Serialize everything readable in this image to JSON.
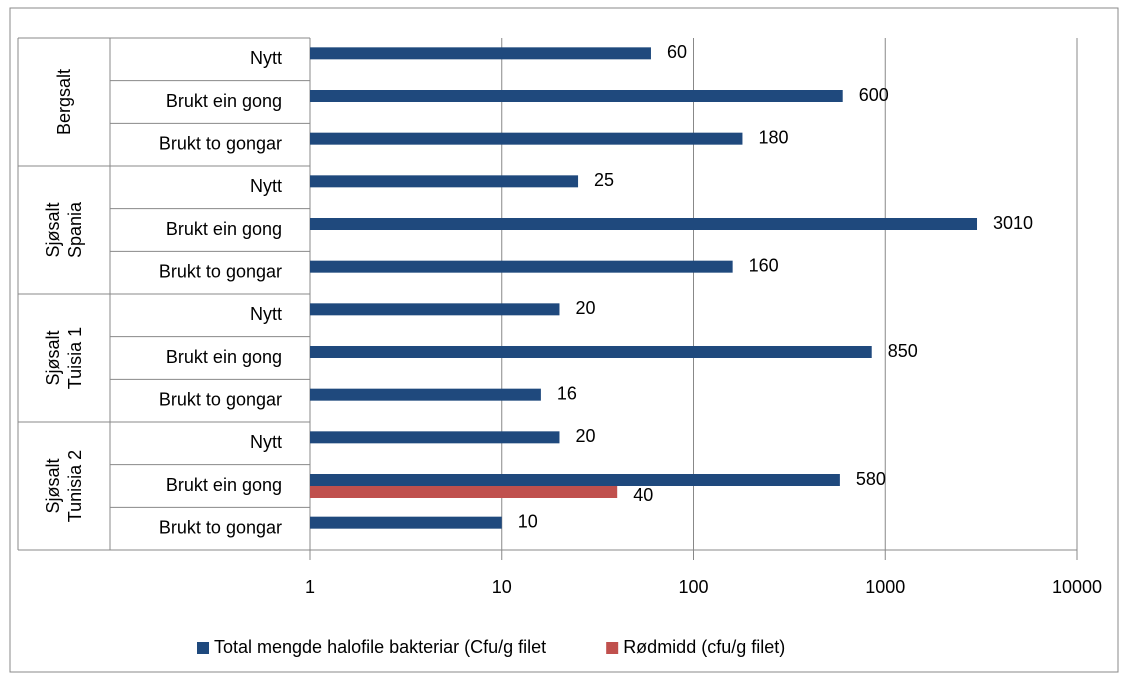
{
  "chart_data": {
    "type": "bar",
    "orientation": "horizontal",
    "groups": [
      {
        "label": "Bergsalt",
        "categories": [
          "Nytt",
          "Brukt ein gong",
          "Brukt to gongar"
        ]
      },
      {
        "label": "Sjøsalt Spania",
        "categories": [
          "Nytt",
          "Brukt ein gong",
          "Brukt to gongar"
        ]
      },
      {
        "label": "Sjøsalt Tuisia 1",
        "categories": [
          "Nytt",
          "Brukt ein gong",
          "Brukt to gongar"
        ]
      },
      {
        "label": "Sjøsalt Tunisia 2",
        "categories": [
          "Nytt",
          "Brukt ein gong",
          "Brukt to gongar"
        ]
      }
    ],
    "series": [
      {
        "name": "Total mengde halofile bakteriar (Cfu/g filet",
        "color": "#1f497d",
        "values": [
          60,
          600,
          180,
          25,
          3010,
          160,
          20,
          850,
          16,
          20,
          580,
          10
        ]
      },
      {
        "name": "Rødmidd (cfu/g filet)",
        "color": "#c0504d",
        "values": [
          null,
          null,
          null,
          null,
          null,
          null,
          null,
          null,
          null,
          null,
          40,
          null
        ]
      }
    ],
    "xlim": [
      1,
      10000
    ],
    "xticks": [
      1,
      10,
      100,
      1000,
      10000
    ],
    "log_x": true,
    "grid": true,
    "legend": "bottom"
  }
}
